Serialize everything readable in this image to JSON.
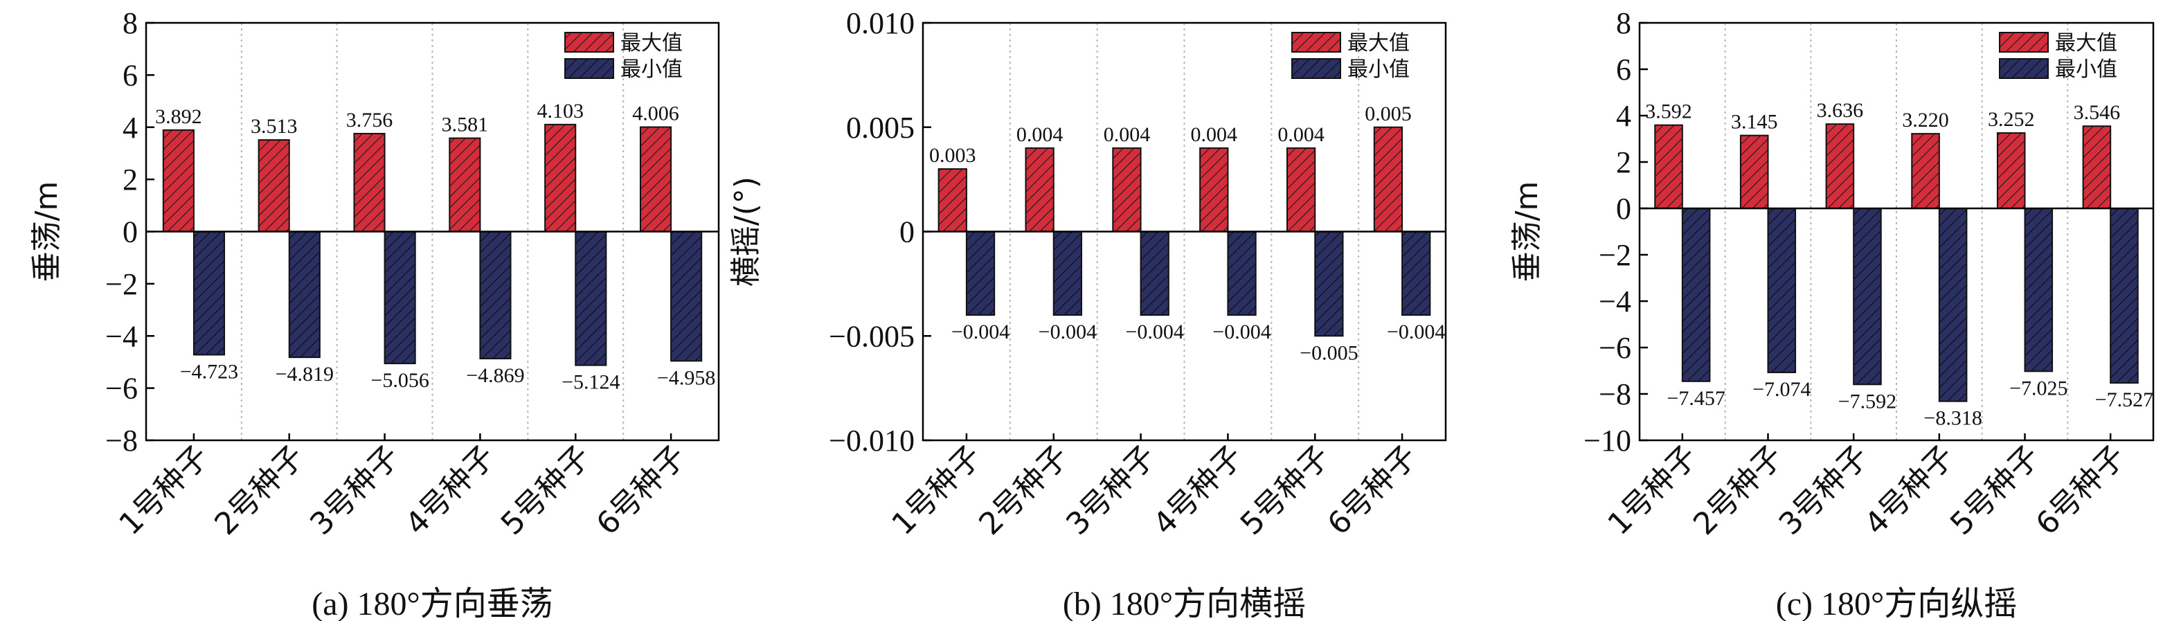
{
  "colors": {
    "max": "#d42d3c",
    "min": "#2b3063",
    "axis": "#000000",
    "grid": "#b5b5b5"
  },
  "legend_labels": [
    "最大值",
    "最小值"
  ],
  "chart_data": [
    {
      "type": "bar",
      "caption": "(a) 180°方向垂荡",
      "ylabel": "垂荡/m",
      "categories": [
        "1号种子",
        "2号种子",
        "3号种子",
        "4号种子",
        "5号种子",
        "6号种子"
      ],
      "series": [
        {
          "name": "最大值",
          "values": [
            3.892,
            3.513,
            3.756,
            3.581,
            4.103,
            4.006
          ],
          "labels": [
            "3.892",
            "3.513",
            "3.756",
            "3.581",
            "4.103",
            "4.006"
          ]
        },
        {
          "name": "最小值",
          "values": [
            -4.723,
            -4.819,
            -5.056,
            -4.869,
            -5.124,
            -4.958
          ],
          "labels": [
            "−4.723",
            "−4.819",
            "−5.056",
            "−4.869",
            "−5.124",
            "−4.958"
          ]
        }
      ],
      "ylim": [
        -8,
        8
      ],
      "yticks": [
        -8,
        -6,
        -4,
        -2,
        0,
        2,
        4,
        6,
        8
      ],
      "ytick_labels": [
        "−8",
        "−6",
        "−4",
        "−2",
        "0",
        "2",
        "4",
        "6",
        "8"
      ],
      "legend": "top-right",
      "grid": "vertical dotted"
    },
    {
      "type": "bar",
      "caption": "(b) 180°方向横摇",
      "ylabel": "横摇/(°)",
      "categories": [
        "1号种子",
        "2号种子",
        "3号种子",
        "4号种子",
        "5号种子",
        "6号种子"
      ],
      "series": [
        {
          "name": "最大值",
          "values": [
            0.003,
            0.004,
            0.004,
            0.004,
            0.004,
            0.005
          ],
          "labels": [
            "0.003",
            "0.004",
            "0.004",
            "0.004",
            "0.004",
            "0.005"
          ]
        },
        {
          "name": "最小值",
          "values": [
            -0.004,
            -0.004,
            -0.004,
            -0.004,
            -0.005,
            -0.004
          ],
          "labels": [
            "−0.004",
            "−0.004",
            "−0.004",
            "−0.004",
            "−0.005",
            "−0.004"
          ]
        }
      ],
      "ylim": [
        -0.01,
        0.01
      ],
      "yticks": [
        -0.01,
        -0.005,
        0,
        0.005,
        0.01
      ],
      "ytick_labels": [
        "−0.010",
        "−0.005",
        "0",
        "0.005",
        "0.010"
      ],
      "legend": "top-right",
      "grid": "vertical dotted"
    },
    {
      "type": "bar",
      "caption": "(c) 180°方向纵摇",
      "ylabel": "垂荡/m",
      "categories": [
        "1号种子",
        "2号种子",
        "3号种子",
        "4号种子",
        "5号种子",
        "6号种子"
      ],
      "series": [
        {
          "name": "最大值",
          "values": [
            3.592,
            3.145,
            3.636,
            3.22,
            3.252,
            3.546
          ],
          "labels": [
            "3.592",
            "3.145",
            "3.636",
            "3.220",
            "3.252",
            "3.546"
          ]
        },
        {
          "name": "最小值",
          "values": [
            -7.457,
            -7.074,
            -7.592,
            -8.318,
            -7.025,
            -7.527
          ],
          "labels": [
            "−7.457",
            "−7.074",
            "−7.592",
            "−8.318",
            "−7.025",
            "−7.527"
          ]
        }
      ],
      "ylim": [
        -10,
        8
      ],
      "yticks": [
        -10,
        -8,
        -6,
        -4,
        -2,
        0,
        2,
        4,
        6,
        8
      ],
      "ytick_labels": [
        "−10",
        "−8",
        "−6",
        "−4",
        "−2",
        "0",
        "2",
        "4",
        "6",
        "8"
      ],
      "legend": "top-right",
      "grid": "vertical dotted"
    }
  ]
}
